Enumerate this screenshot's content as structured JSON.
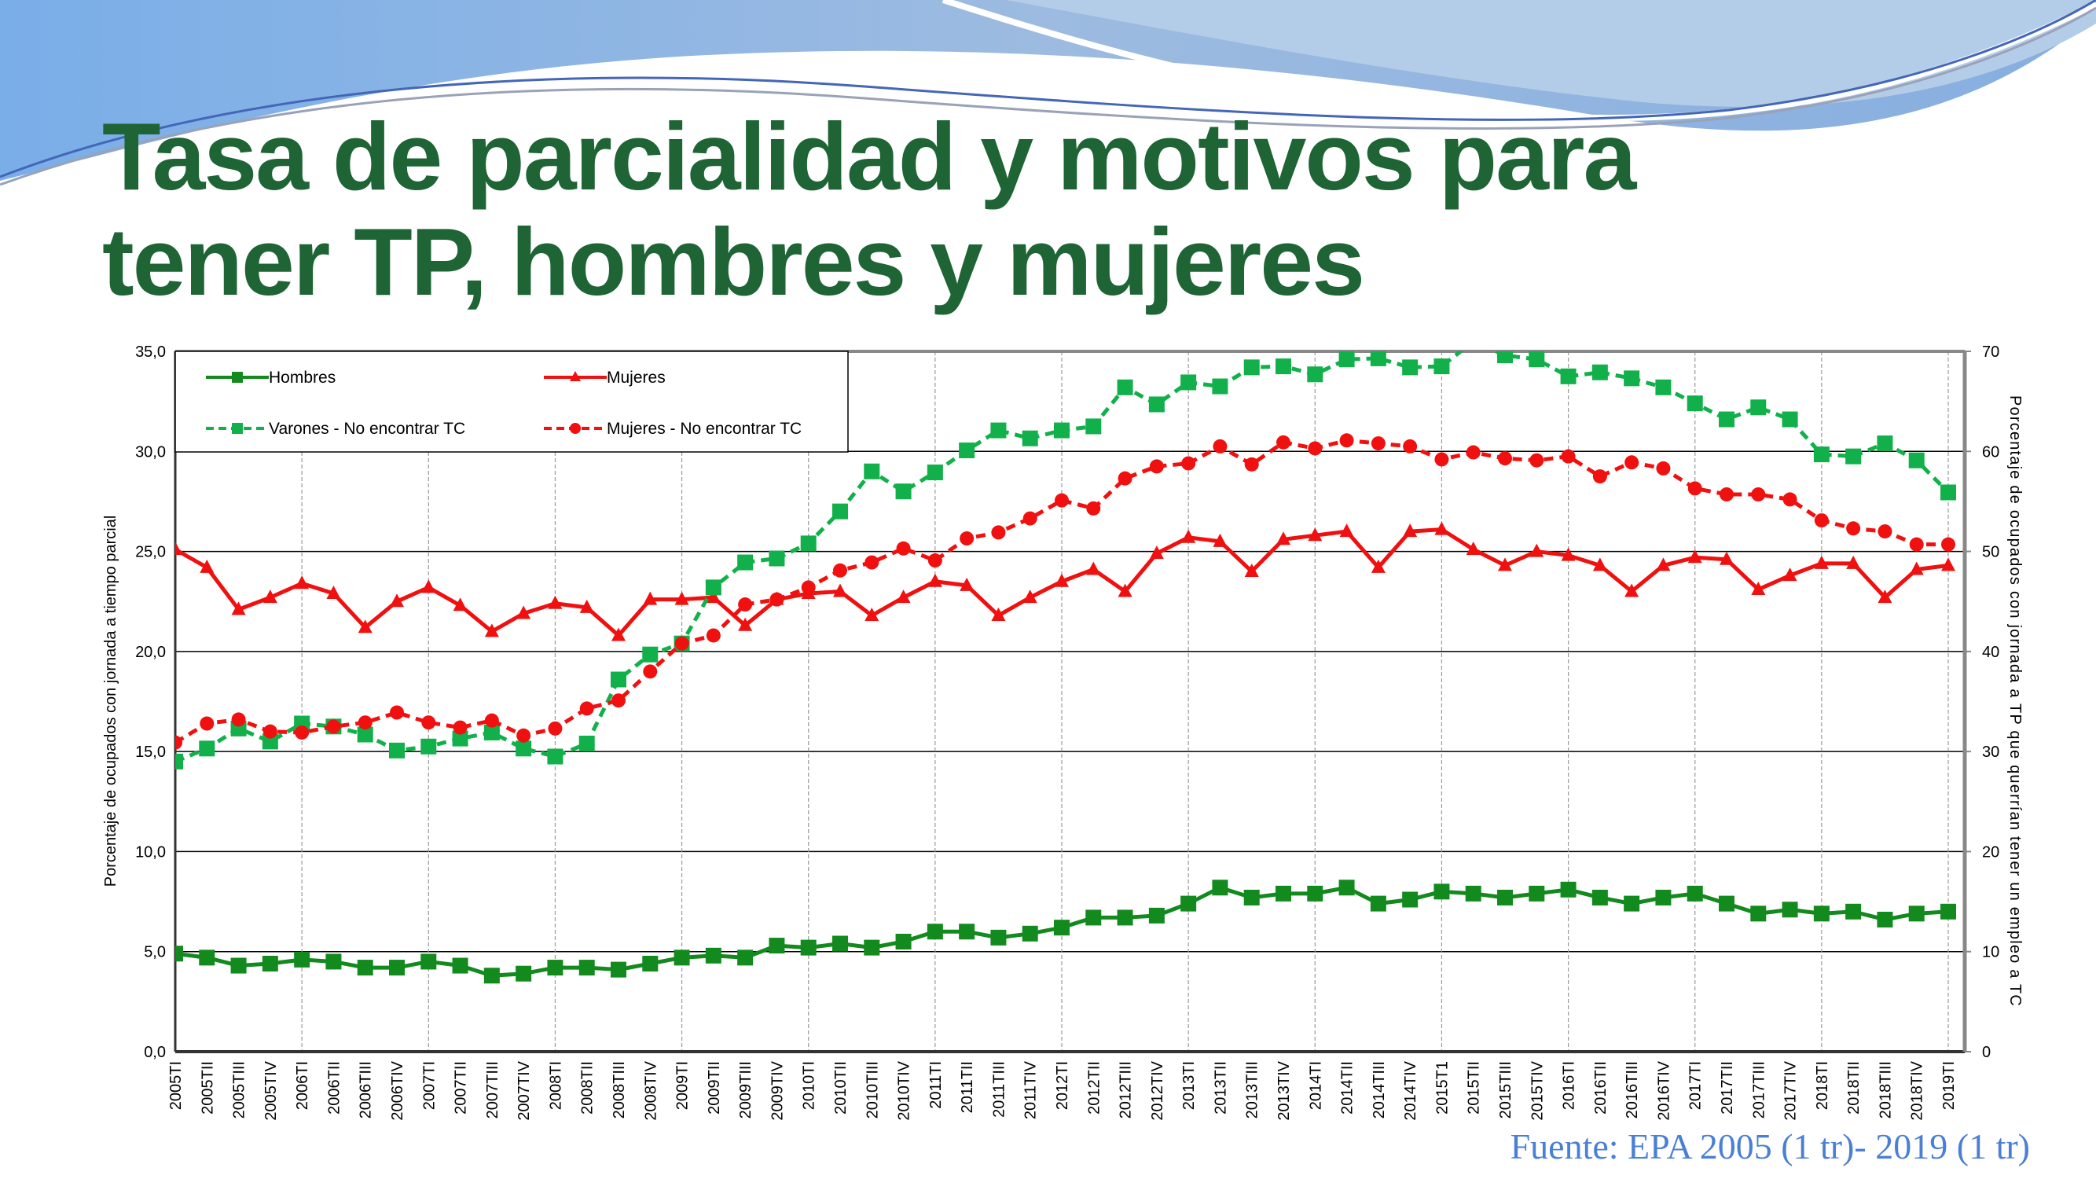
{
  "slide": {
    "title_line1": "Tasa de parcialidad y motivos para",
    "title_line2": "tener TP, hombres y mujeres",
    "source": "Fuente: EPA 2005 (1 tr)- 2019 (1 tr)",
    "title_color": "#1e6434",
    "source_color": "#4a7fd6"
  },
  "chart_data": {
    "type": "line",
    "ylabel": "Porcentaje de ocupados con jornada a tiempo parcial",
    "y2label": "Porcentaje de ocupados con jornada a TP que querrían tener un empleo a TC",
    "ylim": [
      0,
      35
    ],
    "y2lim": [
      0,
      70
    ],
    "yticks": [
      "0,0",
      "5,0",
      "10,0",
      "15,0",
      "20,0",
      "25,0",
      "30,0",
      "35,0"
    ],
    "y2ticks": [
      "0",
      "10",
      "20",
      "30",
      "40",
      "50",
      "60",
      "70"
    ],
    "grid": true,
    "legend_position": "top-left",
    "categories": [
      "2005TI",
      "2005TII",
      "2005TIII",
      "2005TIV",
      "2006TI",
      "2006TII",
      "2006TIII",
      "2006TIV",
      "2007TI",
      "2007TII",
      "2007TIII",
      "2007TIV",
      "2008TI",
      "2008TII",
      "2008TIII",
      "2008TIV",
      "2009TI",
      "2009TII",
      "2009TIII",
      "2009TIV",
      "2010TI",
      "2010TII",
      "2010TIII",
      "2010TIV",
      "2011TI",
      "2011TII",
      "2011TIII",
      "2011TIV",
      "2012TI",
      "2012TII",
      "2012TIII",
      "2012TIV",
      "2013TI",
      "2013TII",
      "2013TIII",
      "2013TIV",
      "2014TI",
      "2014TII",
      "2014TIII",
      "2014TIV",
      "2015T1",
      "2015TII",
      "2015TIII",
      "2015TIV",
      "2016TI",
      "2016TII",
      "2016TIII",
      "2016TIV",
      "2017TI",
      "2017TII",
      "2017TIII",
      "2017TIV",
      "2018TI",
      "2018TII",
      "2018TIII",
      "2018TIV",
      "2019TI"
    ],
    "series": [
      {
        "name": "Hombres",
        "axis": "left",
        "color": "#138a1e",
        "marker": "square",
        "dash": false,
        "values": [
          4.9,
          4.7,
          4.3,
          4.4,
          4.6,
          4.5,
          4.2,
          4.2,
          4.5,
          4.3,
          3.8,
          3.9,
          4.2,
          4.2,
          4.1,
          4.4,
          4.7,
          4.8,
          4.7,
          5.3,
          5.2,
          5.4,
          5.2,
          5.5,
          6.0,
          6.0,
          5.7,
          5.9,
          6.2,
          6.7,
          6.7,
          6.8,
          7.4,
          8.2,
          7.7,
          7.9,
          7.9,
          8.2,
          7.4,
          7.6,
          8.0,
          7.9,
          7.7,
          7.9,
          8.1,
          7.7,
          7.4,
          7.7,
          7.9,
          7.4,
          6.9,
          7.1,
          6.9,
          7.0,
          6.6,
          6.9,
          7.0
        ]
      },
      {
        "name": "Mujeres",
        "axis": "left",
        "color": "#f01010",
        "marker": "triangle",
        "dash": false,
        "values": [
          25.1,
          24.2,
          22.1,
          22.7,
          23.4,
          22.9,
          21.2,
          22.5,
          23.2,
          22.3,
          21.0,
          21.9,
          22.4,
          22.2,
          20.8,
          22.6,
          22.6,
          22.7,
          21.3,
          22.6,
          22.9,
          23.0,
          21.8,
          22.7,
          23.5,
          23.3,
          21.8,
          22.7,
          23.5,
          24.1,
          23.0,
          24.9,
          25.7,
          25.5,
          24.0,
          25.6,
          25.8,
          26.0,
          24.2,
          26.0,
          26.1,
          25.1,
          24.3,
          25.0,
          24.8,
          24.3,
          23.0,
          24.3,
          24.7,
          24.6,
          23.1,
          23.8,
          24.4,
          24.4,
          22.7,
          24.1,
          24.3
        ]
      },
      {
        "name": "Varones - No encontrar TC",
        "axis": "right",
        "color": "#12b04a",
        "marker": "square",
        "dash": true,
        "values": [
          29.0,
          30.3,
          32.3,
          31.0,
          32.8,
          32.5,
          31.7,
          30.1,
          30.5,
          31.3,
          31.9,
          30.3,
          29.5,
          30.8,
          37.2,
          39.7,
          40.8,
          46.4,
          48.9,
          49.3,
          50.8,
          54.0,
          58.0,
          56.0,
          57.9,
          60.1,
          62.1,
          61.3,
          62.1,
          62.5,
          66.4,
          64.7,
          66.9,
          66.5,
          68.4,
          68.5,
          67.7,
          69.2,
          69.3,
          68.4,
          68.5,
          71.0,
          69.6,
          69.2,
          67.5,
          67.9,
          67.3,
          66.4,
          64.8,
          63.2,
          64.4,
          63.2,
          59.7,
          59.5,
          60.8,
          59.1,
          55.9
        ]
      },
      {
        "name": "Mujeres - No encontrar TC",
        "axis": "right",
        "color": "#f01010",
        "marker": "circle",
        "dash": true,
        "values": [
          30.9,
          32.8,
          33.2,
          32.0,
          31.9,
          32.5,
          32.9,
          33.9,
          32.9,
          32.4,
          33.1,
          31.6,
          32.3,
          34.3,
          35.1,
          38.0,
          40.8,
          41.6,
          44.7,
          45.2,
          46.4,
          48.1,
          48.9,
          50.3,
          49.1,
          51.3,
          51.9,
          53.3,
          55.1,
          54.3,
          57.3,
          58.5,
          58.8,
          60.5,
          58.7,
          60.9,
          60.3,
          61.1,
          60.8,
          60.5,
          59.2,
          59.9,
          59.3,
          59.1,
          59.5,
          57.5,
          58.9,
          58.3,
          56.3,
          55.7,
          55.7,
          55.2,
          53.1,
          52.3,
          52.0,
          50.7,
          50.7
        ]
      }
    ]
  }
}
